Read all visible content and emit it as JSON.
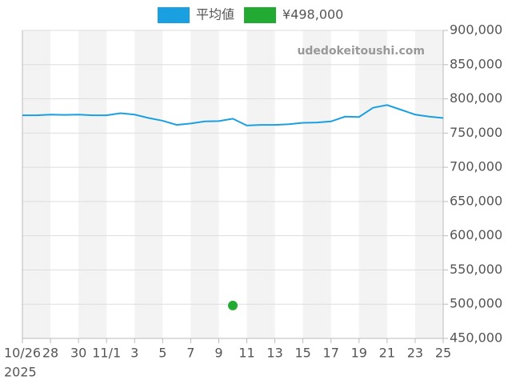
{
  "chart_data": {
    "type": "line",
    "watermark": "udedokeitoushi.com",
    "categories": [
      "10/26",
      null,
      "28",
      null,
      "30",
      null,
      "11/1",
      null,
      "3",
      null,
      "5",
      null,
      "7",
      null,
      "9",
      null,
      "11",
      null,
      "13",
      null,
      "15",
      null,
      "17",
      null,
      "19",
      null,
      "21",
      null,
      "23",
      null,
      "25"
    ],
    "year_label": "2025",
    "series": [
      {
        "name": "平均値",
        "color": "#1a9fe0",
        "style": "line",
        "values": [
          776000,
          776000,
          777000,
          776500,
          777000,
          776000,
          776000,
          779000,
          777000,
          772000,
          768000,
          762000,
          764000,
          767000,
          767500,
          771000,
          761000,
          762000,
          762000,
          763000,
          765000,
          765500,
          767000,
          774000,
          773500,
          787000,
          791000,
          784000,
          777000,
          774000,
          772000
        ]
      },
      {
        "name": "¥498,000",
        "color": "#22aa33",
        "style": "point",
        "values": [
          null,
          null,
          null,
          null,
          null,
          null,
          null,
          null,
          null,
          null,
          null,
          null,
          null,
          null,
          null,
          498000,
          null,
          null,
          null,
          null,
          null,
          null,
          null,
          null,
          null,
          null,
          null,
          null,
          null,
          null,
          null
        ]
      }
    ],
    "ylim": [
      450000,
      900000
    ],
    "yticks": [
      {
        "value": 450000,
        "label": "450,000"
      },
      {
        "value": 500000,
        "label": "500,000"
      },
      {
        "value": 550000,
        "label": "550,000"
      },
      {
        "value": 600000,
        "label": "600,000"
      },
      {
        "value": 650000,
        "label": "650,000"
      },
      {
        "value": 700000,
        "label": "700,000"
      },
      {
        "value": 750000,
        "label": "750,000"
      },
      {
        "value": 800000,
        "label": "800,000"
      },
      {
        "value": 850000,
        "label": "850,000"
      },
      {
        "value": 900000,
        "label": "900,000"
      }
    ],
    "grid": true
  }
}
